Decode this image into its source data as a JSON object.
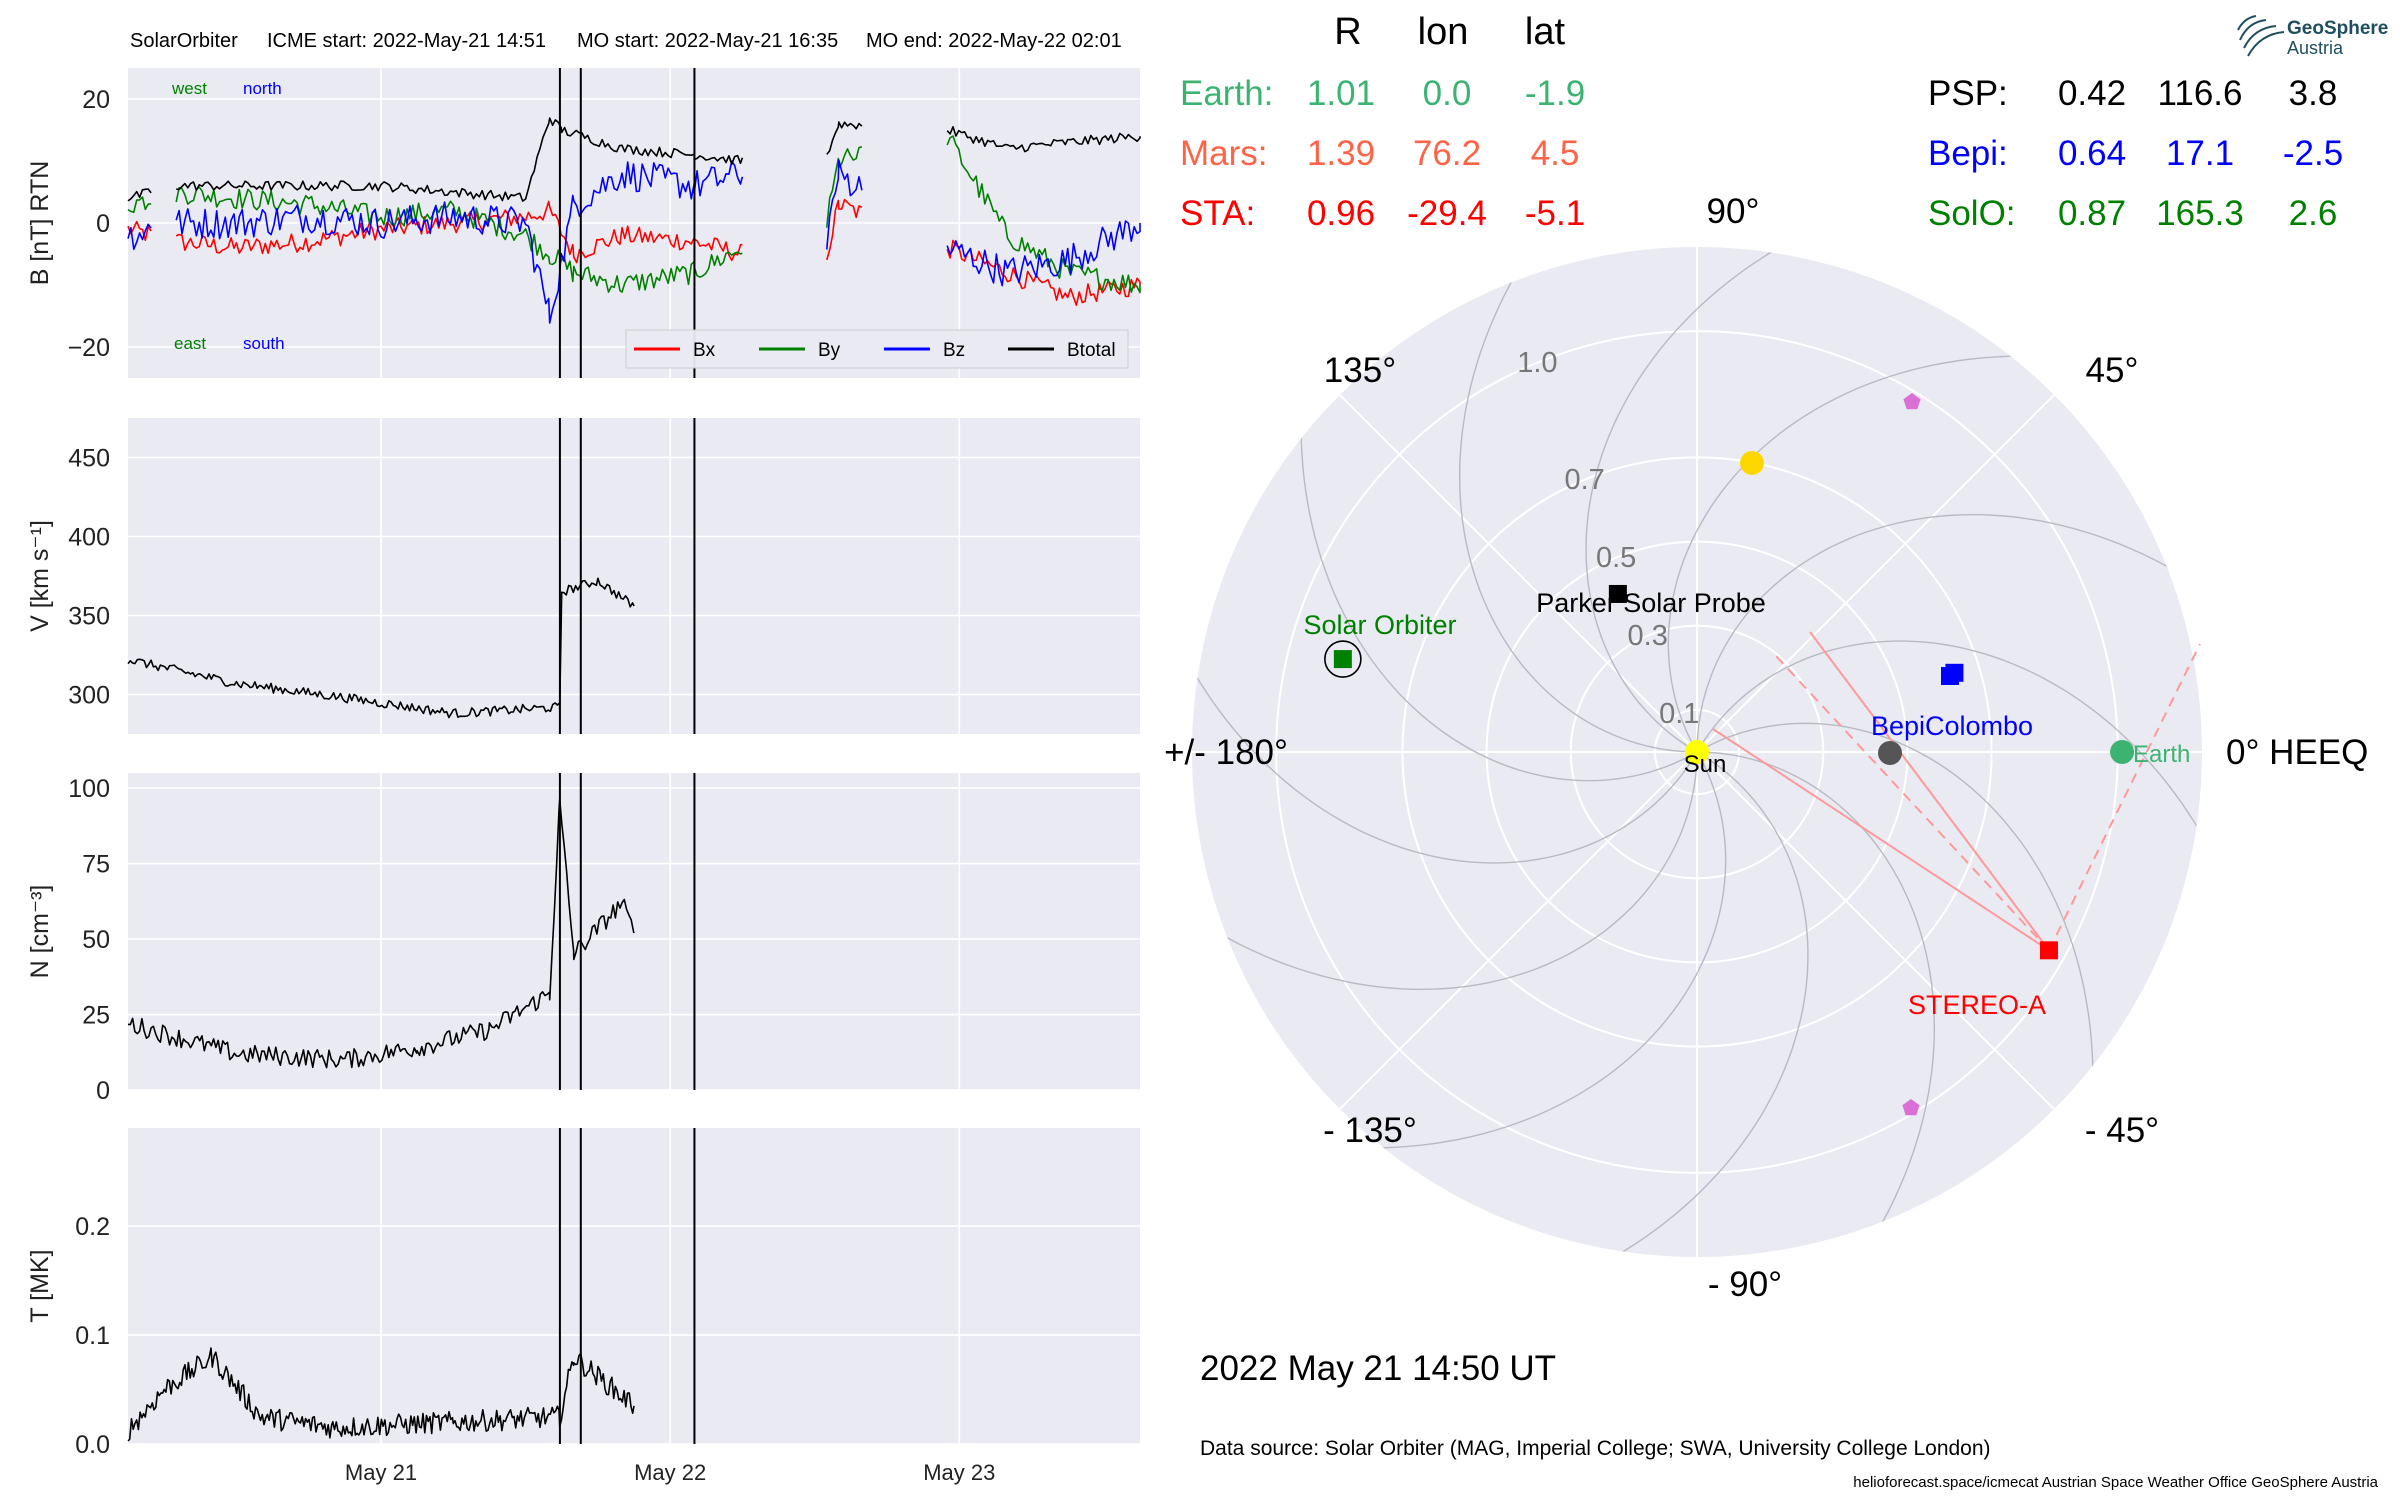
{
  "header": {
    "spacecraft": "SolarOrbiter",
    "icme_start": "ICME start: 2022-May-21 14:51",
    "mo_start": "MO start: 2022-May-21 16:35",
    "mo_end": "MO end: 2022-May-22 02:01"
  },
  "logo": {
    "line1": "GeoSphere",
    "line2": "Austria"
  },
  "positions_table": {
    "headers": [
      "R",
      "lon",
      "lat"
    ],
    "left_rows": [
      {
        "name": "Earth:",
        "R": "1.01",
        "lon": "0.0",
        "lat": "-1.9",
        "color": "#3cb371"
      },
      {
        "name": "Mars:",
        "R": "1.39",
        "lon": "76.2",
        "lat": "4.5",
        "color": "#ff6347"
      },
      {
        "name": "STA:",
        "R": "0.96",
        "lon": "-29.4",
        "lat": "-5.1",
        "color": "#ff0000"
      }
    ],
    "right_rows": [
      {
        "name": "PSP:",
        "R": "0.42",
        "lon": "116.6",
        "lat": "3.8",
        "color": "#000000"
      },
      {
        "name": "Bepi:",
        "R": "0.64",
        "lon": "17.1",
        "lat": "-2.5",
        "color": "#0000ff"
      },
      {
        "name": "SolO:",
        "R": "0.87",
        "lon": "165.3",
        "lat": "2.6",
        "color": "#008000"
      }
    ]
  },
  "footer": {
    "datetime": "2022 May 21  14:50 UT",
    "data_source": "Data source: Solar Orbiter (MAG, Imperial College; SWA, University College London)",
    "credits": "helioforecast.space/icmecat   Austrian Space Weather Office   GeoSphere Austria"
  },
  "chart_data": [
    {
      "type": "line",
      "panel": "magnetic_field",
      "ylabel": "B [nT] RTN",
      "ylim": [
        -25,
        25
      ],
      "yticks": [
        "20",
        "0",
        "−20"
      ],
      "ytick_values": [
        20,
        0,
        -20
      ],
      "x_range_days": [
        "2022-05-20 03:00",
        "2022-05-23 15:00"
      ],
      "corner_labels": {
        "west": "west",
        "north": "north",
        "east": "east",
        "south": "south"
      },
      "legend": [
        "Bx",
        "By",
        "Bz",
        "Btotal"
      ],
      "series": [
        {
          "name": "Bx",
          "color": "#ff0000",
          "x": [
            "05-20 03:00",
            "05-20 07:00",
            "05-20 12:00",
            "05-20 18:00",
            "05-21 00:00",
            "05-21 06:00",
            "05-21 12:00",
            "05-21 14:00",
            "05-21 16:00",
            "05-21 20:00",
            "05-22 02:00",
            "05-22 06:00",
            "05-22 13:00",
            "05-22 14:00",
            "05-22 23:00",
            "05-23 04:00",
            "05-23 09:00",
            "05-23 15:00"
          ],
          "y": [
            -1,
            -3,
            -4,
            -3,
            -1,
            0,
            1,
            2,
            -5,
            -2,
            -3,
            -5,
            -5,
            3,
            -4,
            -8,
            -12,
            -10
          ]
        },
        {
          "name": "By",
          "color": "#008000",
          "x": [
            "05-20 03:00",
            "05-20 07:00",
            "05-20 12:00",
            "05-20 18:00",
            "05-21 00:00",
            "05-21 06:00",
            "05-21 12:00",
            "05-21 14:00",
            "05-21 16:00",
            "05-21 20:00",
            "05-22 02:00",
            "05-22 06:00",
            "05-22 13:00",
            "05-22 14:00",
            "05-22 23:00",
            "05-23 04:00",
            "05-23 09:00",
            "05-23 15:00"
          ],
          "y": [
            3,
            5,
            4,
            3,
            1,
            2,
            -2,
            -5,
            -8,
            -10,
            -8,
            -4,
            0,
            10,
            14,
            -2,
            -8,
            -10
          ]
        },
        {
          "name": "Bz",
          "color": "#0000ff",
          "x": [
            "05-20 03:00",
            "05-20 07:00",
            "05-20 12:00",
            "05-20 18:00",
            "05-21 00:00",
            "05-21 06:00",
            "05-21 12:00",
            "05-21 14:00",
            "05-21 16:00",
            "05-21 20:00",
            "05-22 02:00",
            "05-22 06:00",
            "05-22 13:00",
            "05-22 14:00",
            "05-22 23:00",
            "05-23 04:00",
            "05-23 09:00",
            "05-23 15:00"
          ],
          "y": [
            -2,
            0,
            0,
            1,
            0,
            1,
            0,
            -15,
            3,
            8,
            6,
            8,
            -2,
            8,
            -4,
            -8,
            -6,
            0
          ]
        },
        {
          "name": "Btotal",
          "color": "#000000",
          "x": [
            "05-20 03:00",
            "05-20 07:00",
            "05-20 12:00",
            "05-20 18:00",
            "05-21 00:00",
            "05-21 06:00",
            "05-21 12:00",
            "05-21 14:00",
            "05-21 15:00",
            "05-21 20:00",
            "05-22 02:00",
            "05-22 06:00",
            "05-22 13:00",
            "05-22 14:00",
            "05-22 23:00",
            "05-23 04:00",
            "05-23 09:00",
            "05-23 15:00"
          ],
          "y": [
            4,
            6,
            6,
            6,
            6,
            5,
            4,
            17,
            15,
            12,
            11,
            10,
            11,
            16,
            15,
            12,
            13,
            14
          ]
        }
      ],
      "gaps": [
        [
          "05-20 05:00",
          "05-20 07:00"
        ],
        [
          "05-22 06:00",
          "05-22 13:00"
        ],
        [
          "05-22 16:00",
          "05-22 23:00"
        ]
      ]
    },
    {
      "type": "line",
      "panel": "velocity",
      "ylabel": "V [km s⁻¹]",
      "ylim": [
        275,
        475
      ],
      "yticks": [
        "450",
        "400",
        "350",
        "300"
      ],
      "ytick_values": [
        450,
        400,
        350,
        300
      ],
      "series": [
        {
          "name": "V",
          "color": "#000000",
          "x": [
            "05-20 03:00",
            "05-20 12:00",
            "05-20 21:00",
            "05-21 06:00",
            "05-21 14:50",
            "05-21 15:00",
            "05-21 18:00",
            "05-21 21:00"
          ],
          "y": [
            322,
            307,
            298,
            288,
            292,
            365,
            372,
            356
          ]
        }
      ]
    },
    {
      "type": "line",
      "panel": "density",
      "ylabel": "N [cm⁻³]",
      "ylim": [
        0,
        105
      ],
      "yticks": [
        "100",
        "75",
        "50",
        "25",
        "0"
      ],
      "ytick_values": [
        100,
        75,
        50,
        25,
        0
      ],
      "series": [
        {
          "name": "N",
          "color": "#000000",
          "x": [
            "05-20 03:00",
            "05-20 12:00",
            "05-20 21:00",
            "05-21 03:00",
            "05-21 09:00",
            "05-21 14:00",
            "05-21 14:50",
            "05-21 16:00",
            "05-21 20:00",
            "05-21 21:00"
          ],
          "y": [
            22,
            12,
            10,
            14,
            20,
            32,
            95,
            45,
            62,
            52
          ]
        }
      ]
    },
    {
      "type": "line",
      "panel": "temperature",
      "ylabel": "T [MK]",
      "ylim": [
        0,
        0.29
      ],
      "yticks": [
        "0.2",
        "0.1",
        "0.0"
      ],
      "ytick_values": [
        0.2,
        0.1,
        0.0
      ],
      "xticks": [
        "May 21",
        "May 22",
        "May 23"
      ],
      "series": [
        {
          "name": "T",
          "color": "#000000",
          "x": [
            "05-20 03:00",
            "05-20 06:00",
            "05-20 10:00",
            "05-20 14:00",
            "05-20 20:00",
            "05-21 06:00",
            "05-21 14:50",
            "05-21 16:00",
            "05-21 21:00"
          ],
          "y": [
            0.012,
            0.05,
            0.08,
            0.025,
            0.015,
            0.02,
            0.025,
            0.08,
            0.035
          ]
        }
      ]
    },
    {
      "type": "scatter",
      "panel": "polar_position_plot",
      "angular_labels": [
        "0° HEEQ",
        "45°",
        "90°",
        "135°",
        "+/- 180°",
        "- 135°",
        "- 90°",
        "- 45°"
      ],
      "radial_labels": [
        "0.1",
        "0.3",
        "0.5",
        "0.7",
        "1.0"
      ],
      "radial_ticks": [
        0.1,
        0.3,
        0.5,
        0.7,
        1.0
      ],
      "objects": [
        {
          "name": "Sun",
          "r": 0.0,
          "lon": 0.0,
          "color": "#ffff00",
          "marker": "circle"
        },
        {
          "name": "Earth",
          "r": 1.01,
          "lon": 0.0,
          "color": "#3cb371",
          "marker": "circle"
        },
        {
          "name": "BepiColombo",
          "r": 0.64,
          "lon": 17.1,
          "color": "#0000ff",
          "marker": "square"
        },
        {
          "name": "STEREO-A",
          "r": 0.96,
          "lon": -29.4,
          "color": "#ff0000",
          "marker": "square"
        },
        {
          "name": "Parker Solar Probe",
          "r": 0.42,
          "lon": 116.6,
          "color": "#000000",
          "marker": "square"
        },
        {
          "name": "Solar Orbiter",
          "r": 0.87,
          "lon": 165.3,
          "color": "#008000",
          "marker": "square"
        },
        {
          "name": "",
          "r": 1.39,
          "lon": 76.2,
          "color": "#ffd700",
          "marker": "circle"
        },
        {
          "name": "",
          "r": 0.0,
          "lon": 0.0,
          "color": "#555555",
          "marker": "circle"
        },
        {
          "name": "",
          "r": 0.0,
          "lon": 0.0,
          "color": "#0000ff",
          "marker": "square"
        },
        {
          "name": "",
          "r": 0.0,
          "lon": 0.0,
          "color": "#da70d6",
          "marker": "pentagon"
        },
        {
          "name": "",
          "r": 0.0,
          "lon": 0.0,
          "color": "#da70d6",
          "marker": "pentagon"
        }
      ],
      "labeled_names": [
        "Solar Orbiter",
        "Parker Solar Probe",
        "Sun",
        "BepiColombo",
        "Earth",
        "STEREO-A"
      ]
    }
  ],
  "colors": {
    "panel_bg": "#eaeaf2",
    "grid": "#ffffff",
    "event_lines": "#000000",
    "sta_fov": "#ff9999"
  }
}
